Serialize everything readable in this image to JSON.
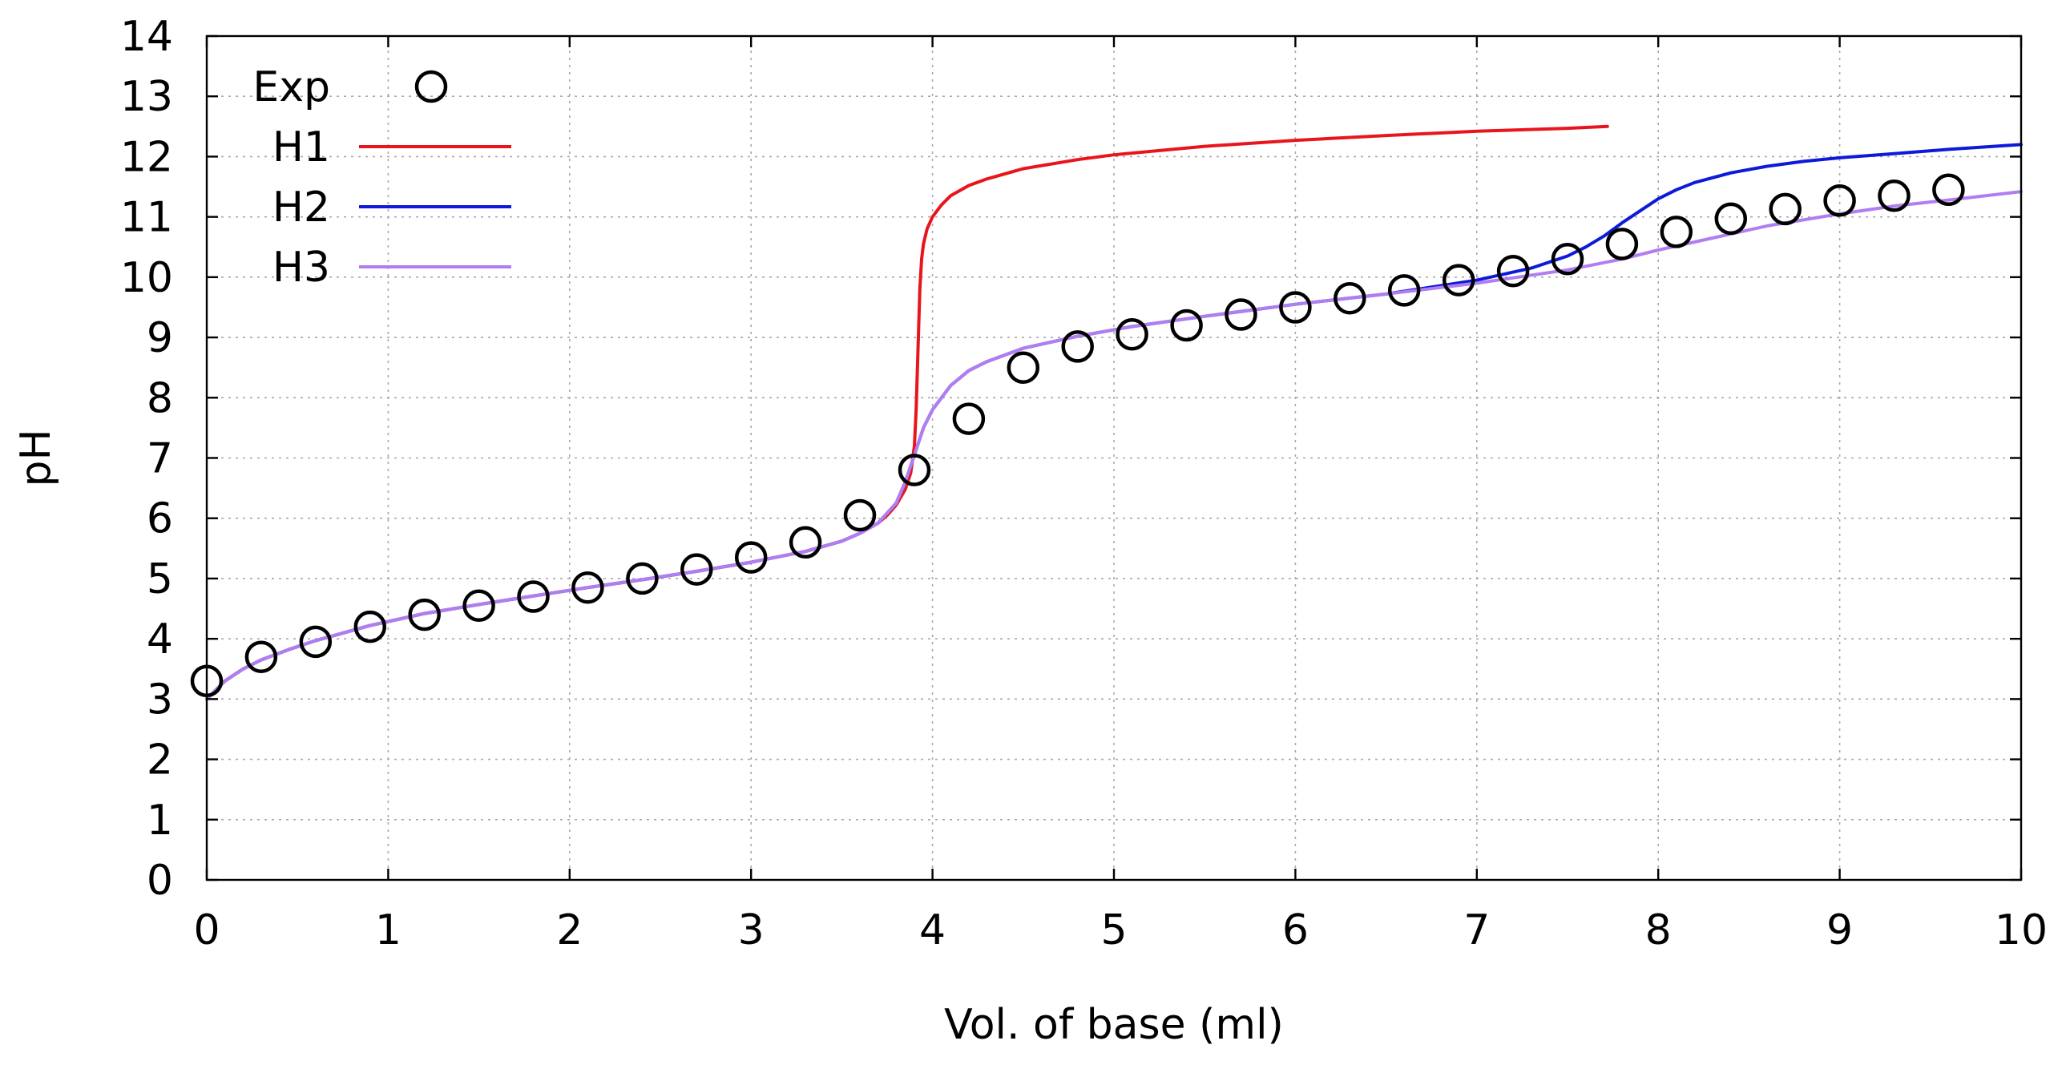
{
  "chart_data": {
    "type": "line",
    "title": "",
    "xlabel": "Vol. of base (ml)",
    "ylabel": "pH",
    "xlim": [
      0,
      10
    ],
    "ylim": [
      0,
      14
    ],
    "xticks": [
      "0",
      "1",
      "2",
      "3",
      "4",
      "5",
      "6",
      "7",
      "8",
      "9",
      "10"
    ],
    "yticks": [
      "0",
      "1",
      "2",
      "3",
      "4",
      "5",
      "6",
      "7",
      "8",
      "9",
      "10",
      "11",
      "12",
      "13",
      "14"
    ],
    "grid": true,
    "legend_position": "top-left",
    "series": [
      {
        "name": "Exp",
        "style": "markers",
        "marker": "open-circle",
        "color": "#000000",
        "x": [
          0.0,
          0.3,
          0.6,
          0.9,
          1.2,
          1.5,
          1.8,
          2.1,
          2.4,
          2.7,
          3.0,
          3.3,
          3.6,
          3.9,
          4.2,
          4.5,
          4.8,
          5.1,
          5.4,
          5.7,
          6.0,
          6.3,
          6.6,
          6.9,
          7.2,
          7.5,
          7.8,
          8.1,
          8.4,
          8.7,
          9.0,
          9.3,
          9.6
        ],
        "y": [
          3.3,
          3.7,
          3.95,
          4.2,
          4.4,
          4.55,
          4.7,
          4.85,
          5.0,
          5.15,
          5.35,
          5.6,
          6.05,
          6.8,
          7.65,
          8.5,
          8.85,
          9.05,
          9.2,
          9.38,
          9.5,
          9.65,
          9.78,
          9.95,
          10.1,
          10.3,
          10.55,
          10.75,
          10.97,
          11.13,
          11.27,
          11.35,
          11.45
        ]
      },
      {
        "name": "H1",
        "style": "line",
        "color": "#e8151c",
        "x": [
          0.0,
          0.05,
          0.1,
          0.2,
          0.3,
          0.45,
          0.6,
          0.9,
          1.2,
          1.5,
          1.8,
          2.1,
          2.4,
          2.7,
          3.0,
          3.3,
          3.5,
          3.6,
          3.7,
          3.75,
          3.8,
          3.85,
          3.88,
          3.9,
          3.91,
          3.92,
          3.93,
          3.94,
          3.95,
          3.97,
          4.0,
          4.05,
          4.1,
          4.2,
          4.3,
          4.5,
          4.8,
          5.0,
          5.5,
          6.0,
          6.5,
          7.0,
          7.5,
          7.72
        ],
        "y": [
          3.0,
          3.15,
          3.3,
          3.5,
          3.65,
          3.82,
          3.97,
          4.22,
          4.42,
          4.57,
          4.71,
          4.85,
          4.98,
          5.12,
          5.27,
          5.45,
          5.62,
          5.75,
          5.92,
          6.05,
          6.22,
          6.48,
          6.75,
          7.2,
          7.8,
          8.8,
          9.8,
          10.3,
          10.55,
          10.8,
          11.0,
          11.2,
          11.35,
          11.52,
          11.63,
          11.8,
          11.95,
          12.03,
          12.17,
          12.27,
          12.35,
          12.42,
          12.47,
          12.5
        ]
      },
      {
        "name": "H2",
        "style": "line",
        "color": "#0d1ad8",
        "x": [
          0.0,
          0.05,
          0.1,
          0.2,
          0.3,
          0.45,
          0.6,
          0.9,
          1.2,
          1.5,
          1.8,
          2.1,
          2.4,
          2.7,
          3.0,
          3.3,
          3.5,
          3.6,
          3.7,
          3.8,
          3.85,
          3.9,
          3.95,
          4.0,
          4.1,
          4.2,
          4.3,
          4.5,
          4.8,
          5.1,
          5.5,
          6.0,
          6.5,
          7.0,
          7.3,
          7.5,
          7.6,
          7.7,
          7.8,
          7.9,
          8.0,
          8.1,
          8.2,
          8.4,
          8.6,
          8.8,
          9.0,
          9.3,
          9.6,
          10.0
        ],
        "y": [
          3.0,
          3.15,
          3.3,
          3.5,
          3.65,
          3.82,
          3.97,
          4.22,
          4.42,
          4.57,
          4.71,
          4.85,
          4.98,
          5.12,
          5.27,
          5.45,
          5.62,
          5.75,
          5.92,
          6.25,
          6.6,
          7.05,
          7.5,
          7.8,
          8.2,
          8.45,
          8.6,
          8.82,
          9.02,
          9.18,
          9.35,
          9.55,
          9.72,
          9.95,
          10.15,
          10.35,
          10.5,
          10.68,
          10.9,
          11.1,
          11.3,
          11.45,
          11.57,
          11.73,
          11.84,
          11.92,
          11.98,
          12.05,
          12.12,
          12.2
        ]
      },
      {
        "name": "H3",
        "style": "line",
        "color": "#b07ef0",
        "x": [
          0.0,
          0.05,
          0.1,
          0.2,
          0.3,
          0.45,
          0.6,
          0.9,
          1.2,
          1.5,
          1.8,
          2.1,
          2.4,
          2.7,
          3.0,
          3.3,
          3.5,
          3.6,
          3.7,
          3.8,
          3.85,
          3.9,
          3.95,
          4.0,
          4.1,
          4.2,
          4.3,
          4.5,
          4.8,
          5.1,
          5.5,
          6.0,
          6.5,
          7.0,
          7.5,
          7.8,
          8.0,
          8.3,
          8.6,
          9.0,
          9.3,
          9.6,
          10.0
        ],
        "y": [
          3.0,
          3.15,
          3.3,
          3.5,
          3.65,
          3.82,
          3.97,
          4.22,
          4.42,
          4.57,
          4.71,
          4.85,
          4.98,
          5.12,
          5.27,
          5.45,
          5.62,
          5.75,
          5.92,
          6.25,
          6.6,
          7.05,
          7.5,
          7.8,
          8.2,
          8.45,
          8.6,
          8.82,
          9.02,
          9.18,
          9.35,
          9.55,
          9.72,
          9.9,
          10.12,
          10.3,
          10.45,
          10.65,
          10.85,
          11.05,
          11.18,
          11.28,
          11.42
        ]
      }
    ]
  }
}
